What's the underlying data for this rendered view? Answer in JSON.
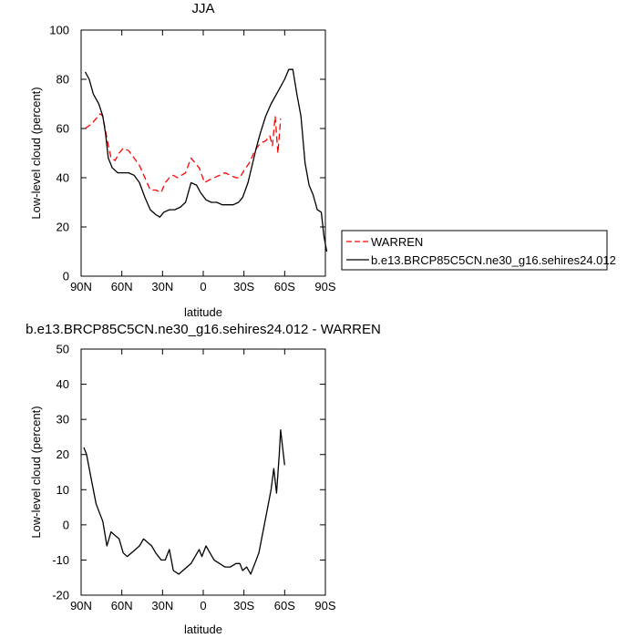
{
  "chart_data": [
    {
      "type": "line",
      "title": "JJA",
      "xlabel": "latitude",
      "ylabel": "Low-level cloud (percent)",
      "xlim": [
        90,
        -90
      ],
      "ylim": [
        0,
        100
      ],
      "x_ticks": [
        90,
        60,
        30,
        0,
        -30,
        -60,
        -90
      ],
      "x_tick_labels": [
        "90N",
        "60N",
        "30N",
        "0",
        "30S",
        "60S",
        "90S"
      ],
      "y_ticks": [
        0,
        20,
        40,
        60,
        80,
        100
      ],
      "y_tick_labels": [
        "0",
        "20",
        "40",
        "60",
        "80",
        "100"
      ],
      "legend_position": "outside-right",
      "series": [
        {
          "name": "WARREN",
          "color": "#ff0000",
          "style": "dashed",
          "points": [
            [
              87,
              60
            ],
            [
              82,
              62
            ],
            [
              79,
              64
            ],
            [
              76,
              66
            ],
            [
              74,
              65
            ],
            [
              71,
              56
            ],
            [
              68,
              48
            ],
            [
              65,
              47
            ],
            [
              62,
              50
            ],
            [
              59,
              52
            ],
            [
              55,
              51
            ],
            [
              51,
              48
            ],
            [
              47,
              45
            ],
            [
              43,
              40
            ],
            [
              39,
              35
            ],
            [
              35,
              35
            ],
            [
              31,
              34
            ],
            [
              28,
              38
            ],
            [
              25,
              40
            ],
            [
              22,
              41
            ],
            [
              19,
              40
            ],
            [
              16,
              41
            ],
            [
              13,
              42
            ],
            [
              9,
              48
            ],
            [
              6,
              46
            ],
            [
              3,
              44
            ],
            [
              -1,
              38
            ],
            [
              -4,
              39
            ],
            [
              -8,
              40
            ],
            [
              -12,
              41
            ],
            [
              -16,
              42
            ],
            [
              -20,
              41
            ],
            [
              -24,
              40
            ],
            [
              -27,
              40
            ],
            [
              -30,
              43
            ],
            [
              -34,
              46
            ],
            [
              -38,
              51
            ],
            [
              -42,
              54
            ],
            [
              -46,
              55
            ],
            [
              -49,
              57
            ],
            [
              -51,
              53
            ],
            [
              -53,
              65
            ],
            [
              -55,
              50
            ],
            [
              -57,
              64
            ]
          ]
        },
        {
          "name": "b.e13.BRCP85C5CN.ne30_g16.sehires24.012",
          "color": "#000000",
          "style": "solid",
          "points": [
            [
              87,
              83
            ],
            [
              84,
              80
            ],
            [
              81,
              74
            ],
            [
              77,
              70
            ],
            [
              74,
              65
            ],
            [
              72,
              58
            ],
            [
              70,
              48
            ],
            [
              67,
              44
            ],
            [
              63,
              42
            ],
            [
              59,
              42
            ],
            [
              55,
              42
            ],
            [
              51,
              41
            ],
            [
              47,
              38
            ],
            [
              43,
              32
            ],
            [
              39,
              27
            ],
            [
              35,
              25
            ],
            [
              32,
              24
            ],
            [
              29,
              26
            ],
            [
              25,
              27
            ],
            [
              21,
              27
            ],
            [
              17,
              28
            ],
            [
              13,
              30
            ],
            [
              9,
              38
            ],
            [
              5,
              37
            ],
            [
              2,
              34
            ],
            [
              -2,
              31
            ],
            [
              -6,
              30
            ],
            [
              -10,
              30
            ],
            [
              -14,
              29
            ],
            [
              -18,
              29
            ],
            [
              -22,
              29
            ],
            [
              -26,
              30
            ],
            [
              -29,
              32
            ],
            [
              -33,
              38
            ],
            [
              -36,
              45
            ],
            [
              -39,
              52
            ],
            [
              -42,
              58
            ],
            [
              -46,
              65
            ],
            [
              -50,
              70
            ],
            [
              -54,
              74
            ],
            [
              -57,
              77
            ],
            [
              -60,
              80
            ],
            [
              -63,
              84
            ],
            [
              -66,
              84
            ],
            [
              -69,
              74
            ],
            [
              -72,
              65
            ],
            [
              -75,
              46
            ],
            [
              -78,
              37
            ],
            [
              -81,
              33
            ],
            [
              -84,
              27
            ],
            [
              -87,
              26
            ],
            [
              -89,
              16
            ],
            [
              -91,
              10
            ]
          ]
        }
      ]
    },
    {
      "type": "line",
      "title": "b.e13.BRCP85C5CN.ne30_g16.sehires24.012 - WARREN",
      "xlabel": "latitude",
      "ylabel": "Low-level cloud (percent)",
      "xlim": [
        90,
        -90
      ],
      "ylim": [
        -20,
        50
      ],
      "x_ticks": [
        90,
        60,
        30,
        0,
        -30,
        -60,
        -90
      ],
      "x_tick_labels": [
        "90N",
        "60N",
        "30N",
        "0",
        "30S",
        "60S",
        "90S"
      ],
      "y_ticks": [
        -20,
        -10,
        0,
        10,
        20,
        30,
        40,
        50
      ],
      "y_tick_labels": [
        "-20",
        "-10",
        "0",
        "10",
        "20",
        "30",
        "40",
        "50"
      ],
      "series": [
        {
          "name": "",
          "color": "#000000",
          "style": "solid",
          "points": [
            [
              88,
              22
            ],
            [
              86,
              20
            ],
            [
              83,
              14
            ],
            [
              79,
              6
            ],
            [
              76,
              3
            ],
            [
              74,
              1
            ],
            [
              71,
              -6
            ],
            [
              68,
              -2
            ],
            [
              65,
              -3
            ],
            [
              62,
              -4
            ],
            [
              59,
              -8
            ],
            [
              56,
              -9
            ],
            [
              53,
              -8
            ],
            [
              50,
              -7
            ],
            [
              47,
              -6
            ],
            [
              44,
              -4
            ],
            [
              41,
              -5
            ],
            [
              38,
              -6
            ],
            [
              35,
              -8
            ],
            [
              31,
              -10
            ],
            [
              28,
              -10
            ],
            [
              25,
              -7
            ],
            [
              22,
              -13
            ],
            [
              18,
              -14
            ],
            [
              15,
              -13
            ],
            [
              12,
              -12
            ],
            [
              9,
              -11
            ],
            [
              6,
              -9
            ],
            [
              3,
              -7
            ],
            [
              1,
              -9
            ],
            [
              -2,
              -6
            ],
            [
              -5,
              -8
            ],
            [
              -8,
              -10
            ],
            [
              -12,
              -11
            ],
            [
              -16,
              -12
            ],
            [
              -20,
              -12
            ],
            [
              -24,
              -11
            ],
            [
              -27,
              -11
            ],
            [
              -29,
              -13
            ],
            [
              -32,
              -12
            ],
            [
              -35,
              -14
            ],
            [
              -38,
              -11
            ],
            [
              -41,
              -8
            ],
            [
              -44,
              -2
            ],
            [
              -47,
              4
            ],
            [
              -50,
              10
            ],
            [
              -52,
              16
            ],
            [
              -54,
              9
            ],
            [
              -56,
              20
            ],
            [
              -57,
              27
            ],
            [
              -60,
              17
            ]
          ]
        }
      ]
    }
  ]
}
